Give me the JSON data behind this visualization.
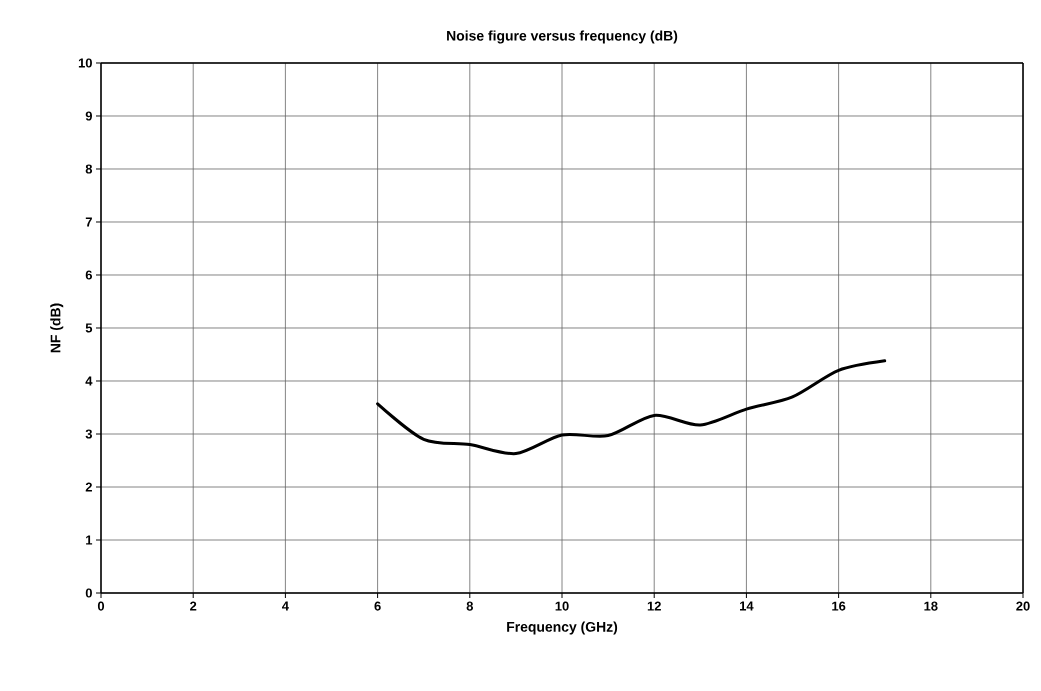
{
  "chart_data": {
    "type": "line",
    "title": "Noise figure versus frequency (dB)",
    "xlabel": "Frequency (GHz)",
    "ylabel": "NF (dB)",
    "x": [
      6,
      7,
      8,
      9,
      10,
      11,
      12,
      13,
      14,
      15,
      16,
      17
    ],
    "series": [
      {
        "color": "#000000",
        "values": [
          3.57,
          2.9,
          2.8,
          2.63,
          2.98,
          2.97,
          3.35,
          3.17,
          3.47,
          3.7,
          4.2,
          4.38
        ]
      }
    ],
    "xlim": [
      0,
      20
    ],
    "ylim": [
      0,
      10
    ],
    "xticks": [
      0,
      2,
      4,
      6,
      8,
      10,
      12,
      14,
      16,
      18,
      20
    ],
    "yticks": [
      0,
      1,
      2,
      3,
      4,
      5,
      6,
      7,
      8,
      9,
      10
    ],
    "grid": true,
    "marker": "none",
    "line_style": "solid"
  }
}
